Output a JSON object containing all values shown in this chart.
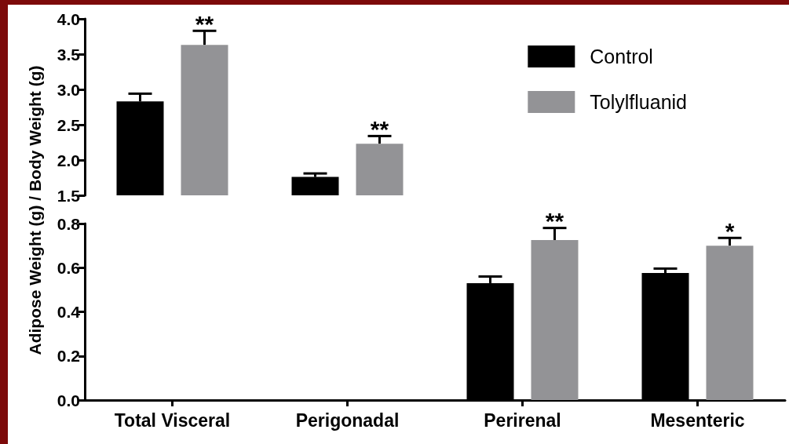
{
  "chart_data": [
    {
      "type": "bar",
      "ylabel": "Adipose Weight (g) / Body Weight (g)",
      "categories": [
        null,
        null
      ],
      "series": [
        {
          "name": "Control",
          "color": "#000000",
          "values": [
            2.83,
            1.76
          ],
          "errors": [
            0.11,
            0.05
          ]
        },
        {
          "name": "Tolylfluanid",
          "color": "#939396",
          "values": [
            3.63,
            2.23
          ],
          "errors": [
            0.2,
            0.11
          ]
        }
      ],
      "ylim": [
        1.5,
        4.0
      ],
      "yticks": [
        1.5,
        {
          "value": 2,
          "label": "2.0"
        },
        2.5,
        {
          "value": 3,
          "label": "3.0"
        },
        3.5,
        {
          "value": 4,
          "label": "4.0"
        }
      ],
      "tick_labels": "y",
      "grid": false,
      "legend": "top right",
      "annotations": [
        "**",
        "**"
      ]
    },
    {
      "type": "bar",
      "categories": [
        "Total Visceral",
        "Perigonadal",
        "Perirenal",
        "Mesenteric"
      ],
      "series": [
        {
          "color": "#000000",
          "values": [
            null,
            null,
            0.53,
            0.576
          ],
          "errors": [
            null,
            null,
            0.03,
            0.02
          ]
        },
        {
          "color": "#939396",
          "values": [
            null,
            null,
            0.725,
            0.7
          ],
          "errors": [
            null,
            null,
            0.055,
            0.035
          ]
        }
      ],
      "ylim": [
        0,
        0.8
      ],
      "yticks": [
        {
          "value": 0,
          "label": "0.0"
        },
        0.2,
        0.4,
        0.6,
        0.8
      ],
      "grid": false,
      "legend": false,
      "annotations": [
        "**",
        "*"
      ]
    }
  ]
}
